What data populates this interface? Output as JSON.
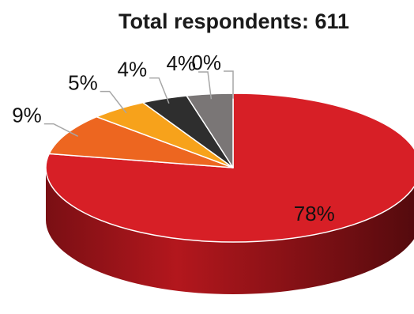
{
  "chart_data": {
    "type": "pie",
    "title": "Total respondents: 611",
    "slices": [
      {
        "label": "78%",
        "value": 78,
        "color": "#d71f26"
      },
      {
        "label": "9%",
        "value": 9,
        "color": "#ed6620"
      },
      {
        "label": "5%",
        "value": 5,
        "color": "#f7a21b"
      },
      {
        "label": "4%",
        "value": 4,
        "color": "#2e2e2e"
      },
      {
        "label": "4%",
        "value": 4,
        "color": "#7a7676"
      },
      {
        "label": "0%",
        "value": 0,
        "color": "#bfbfbf"
      }
    ],
    "style": "3d",
    "legend": "none"
  }
}
